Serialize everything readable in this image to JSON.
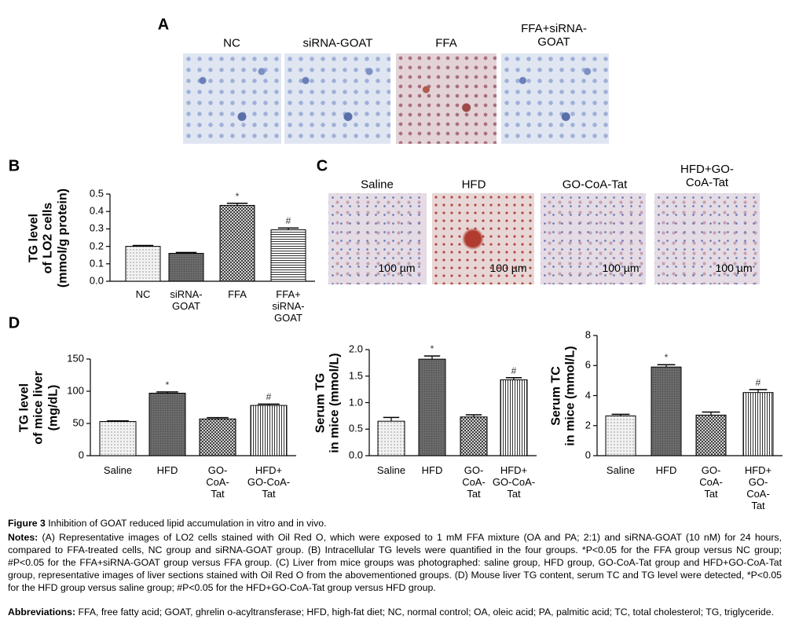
{
  "figure": {
    "panel_labels": [
      "A",
      "B",
      "C",
      "D"
    ]
  },
  "panel_a": {
    "columns": [
      "NC",
      "siRNA-GOAT",
      "FFA",
      "FFA+siRNA-\nGOAT"
    ]
  },
  "panel_c": {
    "columns": [
      "Saline",
      "HFD",
      "GO-CoA-Tat",
      "HFD+GO-\nCoA-Tat"
    ],
    "scale_bar": "100 µm"
  },
  "chart_data": [
    {
      "type": "bar",
      "ylabel": "TG level\nof LO2 cells\n(mmol/g protein)",
      "categories": [
        "NC",
        "siRNA-\nGOAT",
        "FFA",
        "FFA+\nsiRNA-\nGOAT"
      ],
      "values": [
        0.2,
        0.16,
        0.435,
        0.295
      ],
      "errors": [
        0.005,
        0.005,
        0.012,
        0.01
      ],
      "markers": [
        null,
        null,
        "*",
        "#"
      ],
      "ylim": [
        0,
        0.5
      ],
      "yticks": [
        {
          "value": 0,
          "label": "0.0"
        },
        0.1,
        0.2,
        0.3,
        0.4,
        0.5
      ]
    },
    {
      "type": "bar",
      "ylabel": "TG level\nof mice liver\n(mg/dL)",
      "categories": [
        "Saline",
        "HFD",
        "GO-\nCoA-\nTat",
        "HFD+\nGO-CoA-\nTat"
      ],
      "values": [
        53,
        97,
        57,
        78
      ],
      "errors": [
        1,
        2,
        2,
        2
      ],
      "markers": [
        null,
        "*",
        null,
        "#"
      ],
      "ylim": [
        0,
        150
      ],
      "yticks": [
        0,
        50,
        100,
        150
      ]
    },
    {
      "type": "bar",
      "ylabel": "Serum TG\nin mice (mmol/L)",
      "categories": [
        "Saline",
        "HFD",
        "GO-\nCoA-\nTat",
        "HFD+\nGO-CoA-\nTat"
      ],
      "values": [
        0.65,
        1.82,
        0.73,
        1.43
      ],
      "errors": [
        0.07,
        0.06,
        0.04,
        0.04
      ],
      "markers": [
        null,
        "*",
        null,
        "#"
      ],
      "ylim": [
        0,
        2
      ],
      "yticks": [
        {
          "value": 0,
          "label": "0.0"
        },
        0.5,
        {
          "value": 1,
          "label": "1.0"
        },
        1.5,
        {
          "value": 2,
          "label": "2.0"
        }
      ]
    },
    {
      "type": "bar",
      "ylabel": "Serum TC\nin mice (mmol/L)",
      "categories": [
        "Saline",
        "HFD",
        "GO-\nCoA-\nTat",
        "HFD+\nGO-CoA-\nTat"
      ],
      "values": [
        2.65,
        5.9,
        2.7,
        4.2
      ],
      "errors": [
        0.1,
        0.15,
        0.2,
        0.2
      ],
      "markers": [
        null,
        "*",
        null,
        "#"
      ],
      "ylim": [
        0,
        8
      ],
      "yticks": [
        0,
        2,
        4,
        6,
        8
      ]
    }
  ],
  "caption": {
    "title": "Figure 3",
    "text": "Inhibition of GOAT reduced lipid accumulation in vitro and in vivo.",
    "notes_label": "Notes:",
    "notes": "(A) Representative images of LO2 cells stained with Oil Red O, which were exposed to 1 mM FFA mixture (OA and PA; 2:1) and siRNA-GOAT (10 nM) for 24 hours, compared to FFA-treated cells, NC group and siRNA-GOAT group. (B) Intracellular TG levels were quantified in the four groups. *P<0.05 for the FFA group versus NC group; #P<0.05 for the FFA+siRNA-GOAT group versus FFA group. (C) Liver from mice groups was photographed: saline group, HFD group, GO-CoA-Tat group and HFD+GO-CoA-Tat group, representative images of liver sections stained with Oil Red O from the abovementioned groups. (D) Mouse liver TG content, serum TC and TG level were detected, *P<0.05 for the HFD group versus saline group; #P<0.05 for the HFD+GO-CoA-Tat group versus HFD group.",
    "abbreviations_label": "Abbreviations:",
    "abbreviations": "FFA, free fatty acid; GOAT, ghrelin o-acyltransferase; HFD, high-fat diet; NC, normal control; OA, oleic acid; PA, palmitic acid; TC, total cholesterol; TG, triglyceride."
  }
}
